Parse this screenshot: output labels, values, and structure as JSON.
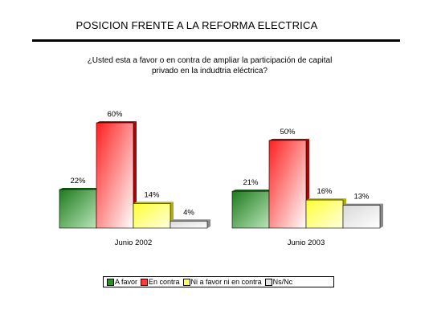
{
  "title": "POSICION FRENTE A LA REFORMA ELECTRICA",
  "question_line1": "¿Usted esta a favor o en contra de ampliar la participación de capital",
  "question_line2": "privado  en la indudtria eléctrica?",
  "chart_data": {
    "type": "bar",
    "categories": [
      "Junio 2002",
      "Junio 2003"
    ],
    "series": [
      {
        "name": "A favor",
        "values": [
          22,
          21
        ],
        "labels": [
          "22%",
          "21%"
        ],
        "color": "#2e8b2e"
      },
      {
        "name": "En contra",
        "values": [
          60,
          50
        ],
        "labels": [
          "60%",
          "50%"
        ],
        "color": "#ff3a3a"
      },
      {
        "name": "Ni a favor ni en contra",
        "values": [
          14,
          16
        ],
        "labels": [
          "14%",
          "16%"
        ],
        "color": "#ffff66"
      },
      {
        "name": "Ns/Nc",
        "values": [
          4,
          13
        ],
        "labels": [
          "4%",
          "13%"
        ],
        "color": "#e6e6e6"
      }
    ],
    "ylim": [
      0,
      60
    ],
    "grid": false,
    "legend_position": "bottom"
  }
}
